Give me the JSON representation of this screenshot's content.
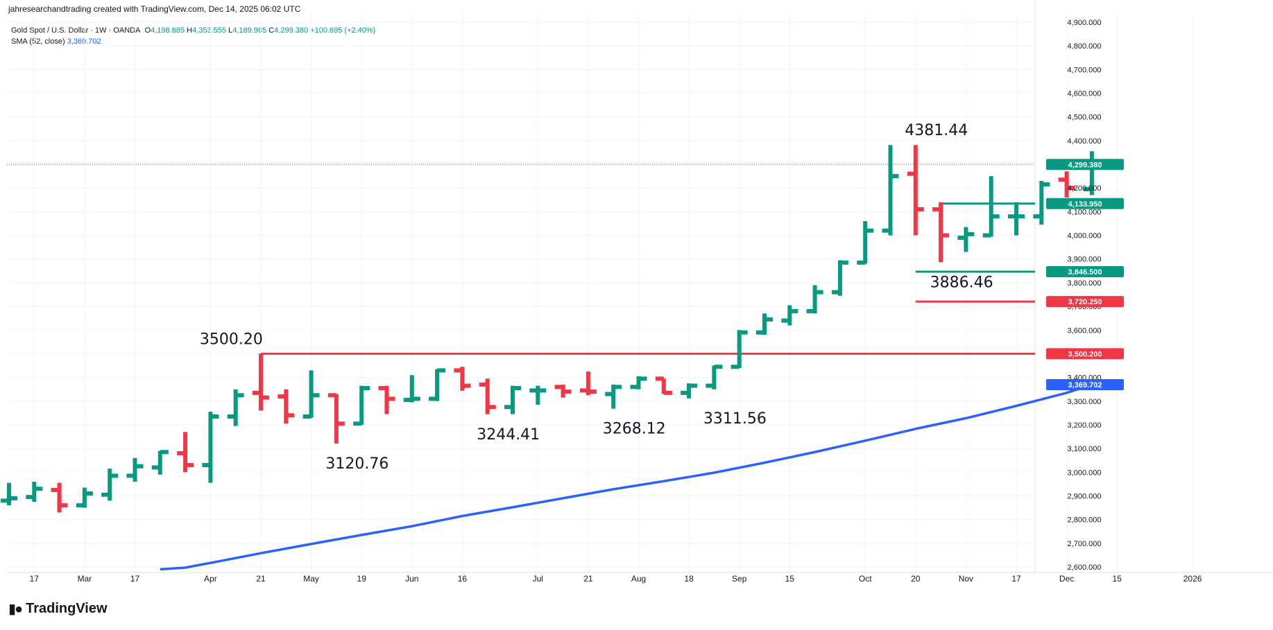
{
  "header": {
    "text": "jahresearchandtrading created with TradingView.com, Dec 14, 2025 06:02 UTC"
  },
  "legend": {
    "symbol": "Gold Spot / U.S. Dollar · 1W · OANDA",
    "o_label": "O",
    "o_value": "4,198.685",
    "h_label": "H",
    "h_value": "4,353.555",
    "l_label": "L",
    "l_value": "4,169.985",
    "c_label": "C",
    "c_value": "4,299.380",
    "change": "+100.695 (+2.40%)",
    "sma_label": "SMA (52, close)",
    "sma_value": "3,369.702"
  },
  "footer": {
    "brand": "TradingView",
    "logo_icon": "tradingview-logo-icon"
  },
  "colors": {
    "up": "#089981",
    "down": "#f23645",
    "sma": "#2962ff",
    "grid": "#f0f3fa",
    "axis_text": "#131722"
  },
  "chart_data": {
    "type": "ohlc",
    "title": "Gold Spot / U.S. Dollar · 1W · OANDA",
    "ylim": [
      2600,
      4900
    ],
    "y_ticks": [
      2600,
      2700,
      2800,
      2900,
      3000,
      3100,
      3200,
      3300,
      3400,
      3500,
      3600,
      3700,
      3800,
      3900,
      4000,
      4100,
      4200,
      4300,
      4400,
      4500,
      4600,
      4700,
      4800,
      4900
    ],
    "y_tick_labels": [
      "2,600.000",
      "2,700.000",
      "2,800.000",
      "2,900.000",
      "3,000.000",
      "3,100.000",
      "3,200.000",
      "3,300.000",
      "3,400.000",
      "3,500.000",
      "3,600.000",
      "3,700.000",
      "3,800.000",
      "3,900.000",
      "4,000.000",
      "4,100.000",
      "4,200.000",
      "4,300.000",
      "4,400.000",
      "4,500.000",
      "4,600.000",
      "4,700.000",
      "4,800.000",
      "4,900.000"
    ],
    "x_ticks": [
      {
        "label": "17",
        "week": 1
      },
      {
        "label": "Mar",
        "week": 3
      },
      {
        "label": "17",
        "week": 5
      },
      {
        "label": "Apr",
        "week": 8
      },
      {
        "label": "21",
        "week": 10
      },
      {
        "label": "May",
        "week": 12
      },
      {
        "label": "19",
        "week": 14
      },
      {
        "label": "Jun",
        "week": 16
      },
      {
        "label": "16",
        "week": 18
      },
      {
        "label": "Jul",
        "week": 21
      },
      {
        "label": "21",
        "week": 23
      },
      {
        "label": "Aug",
        "week": 25
      },
      {
        "label": "18",
        "week": 27
      },
      {
        "label": "Sep",
        "week": 29
      },
      {
        "label": "15",
        "week": 31
      },
      {
        "label": "Oct",
        "week": 34
      },
      {
        "label": "20",
        "week": 36
      },
      {
        "label": "Nov",
        "week": 38
      },
      {
        "label": "17",
        "week": 40
      },
      {
        "label": "Dec",
        "week": 42
      },
      {
        "label": "15",
        "week": 44
      },
      {
        "label": "2026",
        "week": 47
      }
    ],
    "bars": [
      {
        "o": 2880,
        "h": 2955,
        "l": 2860,
        "c": 2890
      },
      {
        "o": 2895,
        "h": 2960,
        "l": 2875,
        "c": 2930
      },
      {
        "o": 2925,
        "h": 2955,
        "l": 2830,
        "c": 2860
      },
      {
        "o": 2860,
        "h": 2935,
        "l": 2850,
        "c": 2910
      },
      {
        "o": 2905,
        "h": 3015,
        "l": 2880,
        "c": 2985
      },
      {
        "o": 2985,
        "h": 3060,
        "l": 2960,
        "c": 3025
      },
      {
        "o": 3020,
        "h": 3090,
        "l": 2990,
        "c": 3085
      },
      {
        "o": 3080,
        "h": 3170,
        "l": 3000,
        "c": 3030
      },
      {
        "o": 3030,
        "h": 3255,
        "l": 2955,
        "c": 3235
      },
      {
        "o": 3235,
        "h": 3350,
        "l": 3195,
        "c": 3325
      },
      {
        "o": 3335,
        "h": 3500.2,
        "l": 3260,
        "c": 3315
      },
      {
        "o": 3320,
        "h": 3350,
        "l": 3205,
        "c": 3240
      },
      {
        "o": 3235,
        "h": 3430,
        "l": 3230,
        "c": 3325
      },
      {
        "o": 3325,
        "h": 3330,
        "l": 3120.76,
        "c": 3205
      },
      {
        "o": 3205,
        "h": 3365,
        "l": 3200,
        "c": 3355
      },
      {
        "o": 3355,
        "h": 3365,
        "l": 3245,
        "c": 3310
      },
      {
        "o": 3305,
        "h": 3410,
        "l": 3295,
        "c": 3310
      },
      {
        "o": 3310,
        "h": 3435,
        "l": 3300,
        "c": 3430
      },
      {
        "o": 3430,
        "h": 3445,
        "l": 3344,
        "c": 3365
      },
      {
        "o": 3370,
        "h": 3395,
        "l": 3244.41,
        "c": 3275
      },
      {
        "o": 3275,
        "h": 3365,
        "l": 3245,
        "c": 3355
      },
      {
        "o": 3345,
        "h": 3365,
        "l": 3285,
        "c": 3345
      },
      {
        "o": 3360,
        "h": 3370,
        "l": 3315,
        "c": 3340
      },
      {
        "o": 3345,
        "h": 3425,
        "l": 3325,
        "c": 3340
      },
      {
        "o": 3330,
        "h": 3370,
        "l": 3268.12,
        "c": 3360
      },
      {
        "o": 3360,
        "h": 3405,
        "l": 3350,
        "c": 3395
      },
      {
        "o": 3395,
        "h": 3395,
        "l": 3330,
        "c": 3335
      },
      {
        "o": 3335,
        "h": 3375,
        "l": 3311.56,
        "c": 3365
      },
      {
        "o": 3365,
        "h": 3450,
        "l": 3350,
        "c": 3445
      },
      {
        "o": 3445,
        "h": 3600,
        "l": 3440,
        "c": 3590
      },
      {
        "o": 3590,
        "h": 3670,
        "l": 3580,
        "c": 3645
      },
      {
        "o": 3640,
        "h": 3705,
        "l": 3620,
        "c": 3680
      },
      {
        "o": 3680,
        "h": 3790,
        "l": 3670,
        "c": 3760
      },
      {
        "o": 3760,
        "h": 3895,
        "l": 3745,
        "c": 3885
      },
      {
        "o": 3885,
        "h": 4060,
        "l": 3880,
        "c": 4020
      },
      {
        "o": 4020,
        "h": 4381.44,
        "l": 4000,
        "c": 4250
      },
      {
        "o": 4260,
        "h": 4381.44,
        "l": 4000,
        "c": 4110
      },
      {
        "o": 4110,
        "h": 4140,
        "l": 3886.46,
        "c": 4000
      },
      {
        "o": 3990,
        "h": 4035,
        "l": 3930,
        "c": 4005
      },
      {
        "o": 4000,
        "h": 4250,
        "l": 3995,
        "c": 4080
      },
      {
        "o": 4080,
        "h": 4140,
        "l": 4000,
        "c": 4080
      },
      {
        "o": 4080,
        "h": 4230,
        "l": 4045,
        "c": 4215
      },
      {
        "o": 4235,
        "h": 4270,
        "l": 4160,
        "c": 4200
      },
      {
        "o": 4195,
        "h": 4355,
        "l": 4170,
        "c": 4299.38
      }
    ],
    "sma": {
      "name": "SMA (52, close)",
      "points": [
        {
          "week": 6,
          "value": 2590
        },
        {
          "week": 7,
          "value": 2597
        },
        {
          "week": 8,
          "value": 2617
        },
        {
          "week": 10,
          "value": 2658
        },
        {
          "week": 12,
          "value": 2697
        },
        {
          "week": 14,
          "value": 2735
        },
        {
          "week": 16,
          "value": 2772
        },
        {
          "week": 18,
          "value": 2815
        },
        {
          "week": 20,
          "value": 2852
        },
        {
          "week": 22,
          "value": 2890
        },
        {
          "week": 24,
          "value": 2928
        },
        {
          "week": 26,
          "value": 2962
        },
        {
          "week": 28,
          "value": 2998
        },
        {
          "week": 30,
          "value": 3040
        },
        {
          "week": 32,
          "value": 3085
        },
        {
          "week": 34,
          "value": 3133
        },
        {
          "week": 36,
          "value": 3183
        },
        {
          "week": 38,
          "value": 3228
        },
        {
          "week": 40,
          "value": 3280
        },
        {
          "week": 42,
          "value": 3335
        },
        {
          "week": 43,
          "value": 3369.702
        }
      ]
    },
    "horizontal_lines": [
      {
        "value": 3500.2,
        "color": "#f23645",
        "label": "3,500.200",
        "from_week": 10
      },
      {
        "value": 3720.25,
        "color": "#f23645",
        "label": "3,720.250",
        "from_week": 36
      },
      {
        "value": 3846.5,
        "color": "#089981",
        "label": "3,846.500",
        "from_week": 36
      },
      {
        "value": 4133.95,
        "color": "#089981",
        "label": "4,133.950",
        "from_week": 37
      }
    ],
    "last_price": {
      "value": 4299.38,
      "label": "4,299.380",
      "color": "#089981"
    },
    "sma_price": {
      "value": 3369.702,
      "label": "3,369.702",
      "color": "#2962ff"
    },
    "annotations": [
      {
        "text": "3500.20",
        "week": 8,
        "value": 3500.2,
        "pos": "above"
      },
      {
        "text": "3120.76",
        "week": 13,
        "value": 3120.76,
        "pos": "below"
      },
      {
        "text": "3244.41",
        "week": 19,
        "value": 3244.41,
        "pos": "below"
      },
      {
        "text": "3268.12",
        "week": 24,
        "value": 3268.12,
        "pos": "below"
      },
      {
        "text": "3311.56",
        "week": 28,
        "value": 3311.56,
        "pos": "below"
      },
      {
        "text": "4381.44",
        "week": 36,
        "value": 4381.44,
        "pos": "above"
      },
      {
        "text": "3886.46",
        "week": 37,
        "value": 3886.46,
        "pos": "below"
      }
    ]
  }
}
